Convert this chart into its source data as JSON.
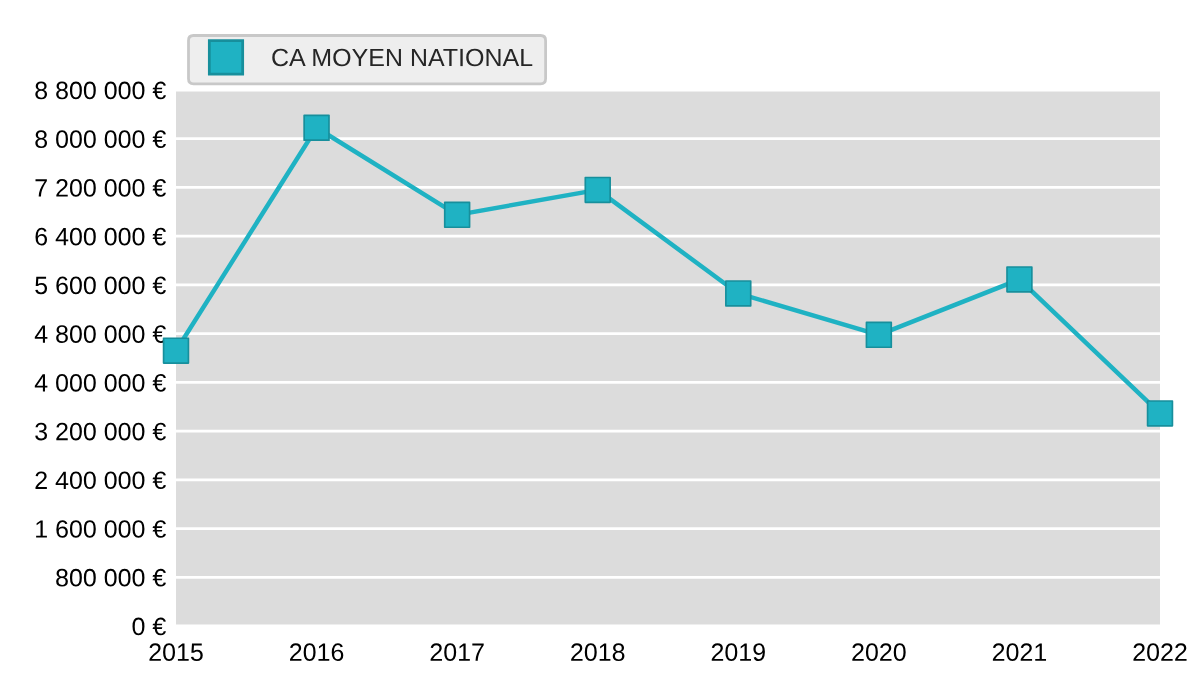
{
  "chart_data": {
    "type": "line",
    "x": [
      2015,
      2016,
      2017,
      2018,
      2019,
      2020,
      2021,
      2022
    ],
    "series": [
      {
        "name": "CA MOYEN NATIONAL",
        "color": "#1fb2c3",
        "values": [
          4520000,
          8180000,
          6750000,
          7160000,
          5460000,
          4780000,
          5690000,
          3490000
        ]
      }
    ],
    "xlim": [
      2015,
      2022
    ],
    "xticks": [
      2015,
      2016,
      2017,
      2018,
      2019,
      2020,
      2021,
      2022
    ],
    "ylim": [
      0,
      8800000
    ],
    "yticks": [
      {
        "value": 0,
        "label": "0 €"
      },
      {
        "value": 800000,
        "label": "800 000 €"
      },
      {
        "value": 1600000,
        "label": "1 600 000 €"
      },
      {
        "value": 2400000,
        "label": "2 400 000 €"
      },
      {
        "value": 3200000,
        "label": "3 200 000 €"
      },
      {
        "value": 4000000,
        "label": "4 000 000 €"
      },
      {
        "value": 4800000,
        "label": "4 800 000 €"
      },
      {
        "value": 5600000,
        "label": "5 600 000 €"
      },
      {
        "value": 6400000,
        "label": "6 400 000 €"
      },
      {
        "value": 7200000,
        "label": "7 200 000 €"
      },
      {
        "value": 8000000,
        "label": "8 000 000 €"
      },
      {
        "value": 8800000,
        "label": "8 800 000 €"
      }
    ],
    "grid": "y",
    "legend": "top left",
    "marker": "square",
    "line_style": "solid"
  }
}
